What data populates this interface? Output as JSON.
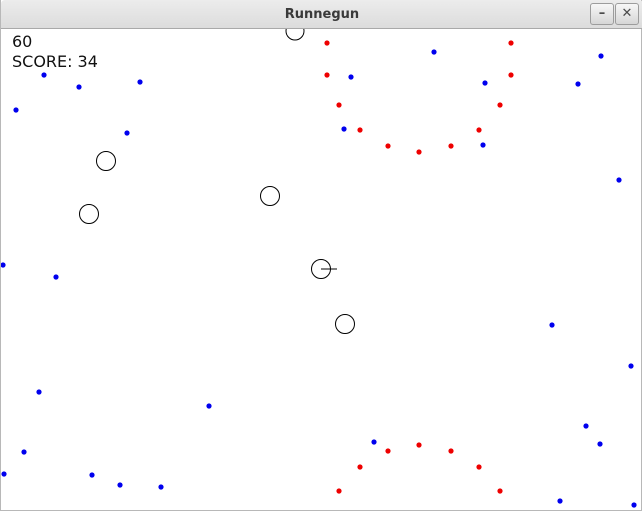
{
  "window": {
    "title": "Runnegun",
    "minimize_glyph": "–",
    "close_glyph": "✕"
  },
  "hud": {
    "timer": "60",
    "score_label": "SCORE:",
    "score_value": "34"
  },
  "colors": {
    "blue_dot": "#0000ee",
    "red_dot": "#ee0000",
    "outline": "#000000"
  }
}
